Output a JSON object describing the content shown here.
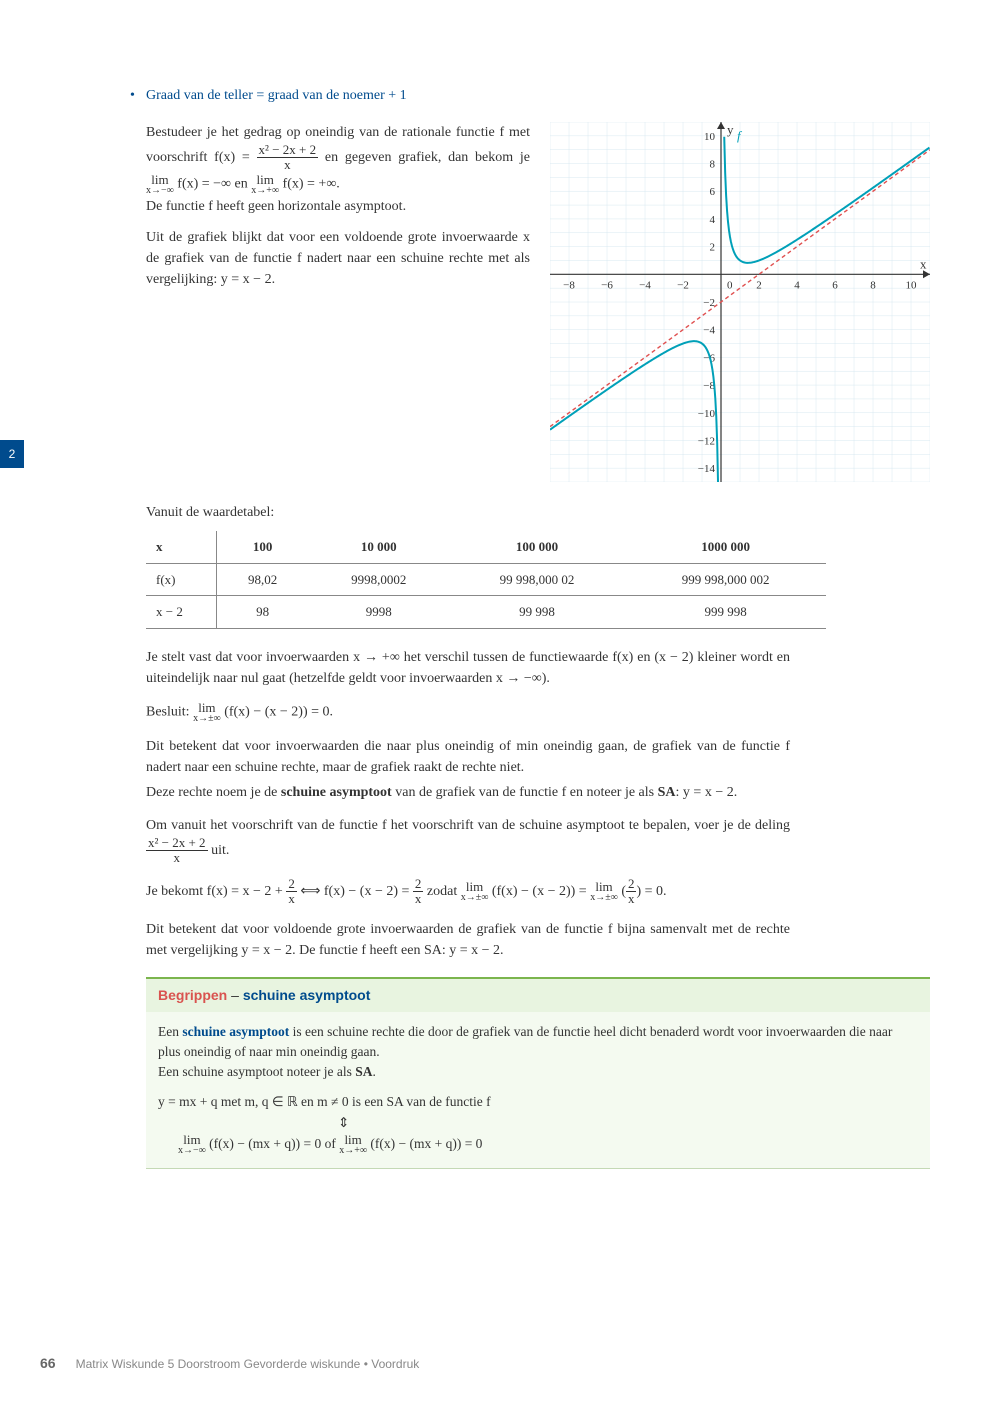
{
  "sideTab": "2",
  "section": {
    "title": "Graad van de teller = graad van de noemer + 1",
    "para1_a": "Bestudeer je het gedrag op oneindig van de rationale functie f met voorschrift f(x) = ",
    "para1_b": " en gegeven grafiek, dan bekom je ",
    "para1_c": " f(x) = −∞ en ",
    "para1_d": " f(x) = +∞.",
    "para1_e": "De functie f heeft geen horizontale asymptoot.",
    "para2": "Uit de grafiek blijkt dat voor een voldoende grote invoerwaarde x de grafiek van de functie f nadert naar een schuine rechte met als vergelijking: y = x − 2.",
    "frac1": {
      "num": "x² − 2x + 2",
      "den": "x"
    },
    "lim_minus": "x→−∞",
    "lim_plus": "x→+∞"
  },
  "graph": {
    "xlim": [
      -9,
      11
    ],
    "ylim": [
      -15,
      11
    ],
    "xticks": [
      -8,
      -6,
      -4,
      -2,
      0,
      2,
      4,
      6,
      8,
      10
    ],
    "yticks": [
      10,
      8,
      6,
      4,
      2,
      0,
      -2,
      -4,
      -6,
      -8,
      -10,
      -12,
      -14
    ],
    "grid_color": "#d8e8f0",
    "axis_color": "#333333",
    "curve_color": "#00a0b8",
    "asymptote_color": "#e05050",
    "asymptote_dash": "4,3",
    "background": "#ffffff",
    "f_label": "f",
    "vertical_asymptote_x": 0,
    "oblique_asymptote": {
      "m": 1,
      "q": -2
    }
  },
  "tableTitle": "Vanuit de waardetabel:",
  "table": {
    "columns": [
      "x",
      "100",
      "10 000",
      "100 000",
      "1000 000"
    ],
    "rows": [
      [
        "f(x)",
        "98,02",
        "9998,0002",
        "99 998,000 02",
        "999 998,000 002"
      ],
      [
        "x − 2",
        "98",
        "9998",
        "99 998",
        "999 998"
      ]
    ]
  },
  "body": {
    "p1": "Je stelt vast dat voor invoerwaarden x → +∞ het verschil tussen de functiewaarde f(x) en (x − 2) kleiner wordt en uiteindelijk naar nul gaat (hetzelfde geldt voor invoerwaarden x → −∞).",
    "p2a": "Besluit: ",
    "p2b": " (f(x) − (x − 2)) = 0.",
    "lim_pm": "x→±∞",
    "p3": "Dit betekent dat voor invoerwaarden die naar plus oneindig of min oneindig gaan, de grafiek van de functie f nadert naar een schuine rechte, maar de grafiek raakt de rechte niet.",
    "p4a": "Deze rechte noem je de ",
    "p4b": "schuine asymptoot",
    "p4c": " van de grafiek van de functie f en noteer je als ",
    "p4d": "SA",
    "p4e": ": y = x − 2.",
    "p5a": "Om vanuit het voorschrift van de functie f het voorschrift van de schuine asymptoot te bepalen, voer je de deling ",
    "p5b": " uit.",
    "p6a": "Je bekomt f(x) = x − 2 + ",
    "frac2": {
      "num": "2",
      "den": "x"
    },
    "p6b": " ⟺ f(x) − (x − 2) = ",
    "p6c": " zodat ",
    "p6d": " (f(x) − (x − 2)) = ",
    "p6e": " = 0.",
    "p7": "Dit betekent dat voor voldoende grote invoerwaarden de grafiek van de functie f bijna samenvalt met de rechte met vergelijking y = x − 2. De functie f heeft een SA: y = x − 2."
  },
  "begrippen": {
    "title1": "Begrippen",
    "dash": " – ",
    "title2": "schuine asymptoot",
    "line1a": "Een ",
    "line1b": "schuine asymptoot",
    "line1c": " is een schuine rechte die door de grafiek van de functie heel dicht benaderd wordt voor invoerwaarden die naar plus oneindig of naar min oneindig gaan.",
    "line2": "Een schuine asymptoot noteer je als ",
    "line2b": "SA",
    "line2c": ".",
    "line3": "y = mx + q met m, q ∈ ℝ en m ≠ 0 is een SA van de functie f",
    "updown": "⇕",
    "line4a": " (f(x) − (mx + q)) = 0   of   ",
    "line4b": " (f(x) − (mx + q)) = 0"
  },
  "footer": {
    "page": "66",
    "text": "Matrix Wiskunde 5 Doorstroom Gevorderde wiskunde • Voordruk"
  }
}
